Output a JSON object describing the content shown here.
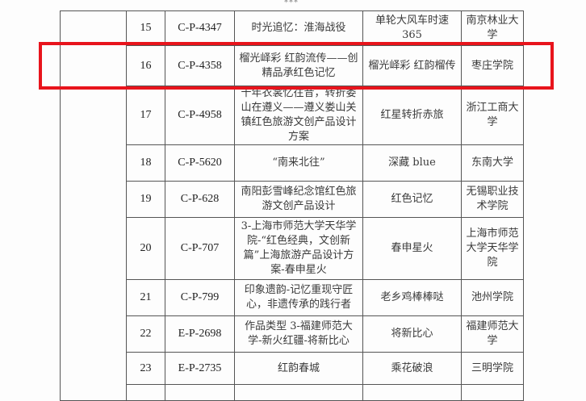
{
  "ellipsis": "***",
  "highlight_color": "#e8141c",
  "rows": [
    {
      "no": "15",
      "code": "C-P-4347",
      "title": "时光追忆：淮海战役",
      "team": "单轮大风车时速365",
      "school": "南京林业大学"
    },
    {
      "no": "16",
      "code": "C-P-4358",
      "title": "榴光峄彩 红韵流传——创精品承红色记忆",
      "team": "榴光峄彩 红韵榴传",
      "school": "枣庄学院"
    },
    {
      "no": "17",
      "code": "C-P-4958",
      "title": "千年衣裳忆往昔，转折娄山在遵义——遵义娄山关镇红色旅游文创产品设计方案",
      "team": "红星转折赤旅",
      "school": "浙江工商大学"
    },
    {
      "no": "18",
      "code": "C-P-5620",
      "title": "“南来北往”",
      "team": "深藏 blue",
      "school": "东南大学"
    },
    {
      "no": "19",
      "code": "C-P-628",
      "title": "南阳彭雪峰纪念馆红色旅游文创产品设计",
      "team": "红色记忆",
      "school": "无锡职业技术学院"
    },
    {
      "no": "20",
      "code": "C-P-707",
      "title": "3-上海市师范大学天华学院-“红色经典，文创新篇”上海旅游产品设计方案-春申星火",
      "team": "春申星火",
      "school": "上海市师范大学天华学院"
    },
    {
      "no": "21",
      "code": "C-P-799",
      "title": "印象遗韵-记忆重现守匠心，非遗传承的践行者",
      "team": "老乡鸡棒棒哒",
      "school": "池州学院"
    },
    {
      "no": "22",
      "code": "E-P-2698",
      "title": "作品类型 3-福建师范大学-新火红疆-将新比心",
      "team": "将新比心",
      "school": "福建师范大学"
    },
    {
      "no": "23",
      "code": "E-P-2735",
      "title": "红韵春城",
      "team": "乘花破浪",
      "school": "三明学院"
    }
  ]
}
